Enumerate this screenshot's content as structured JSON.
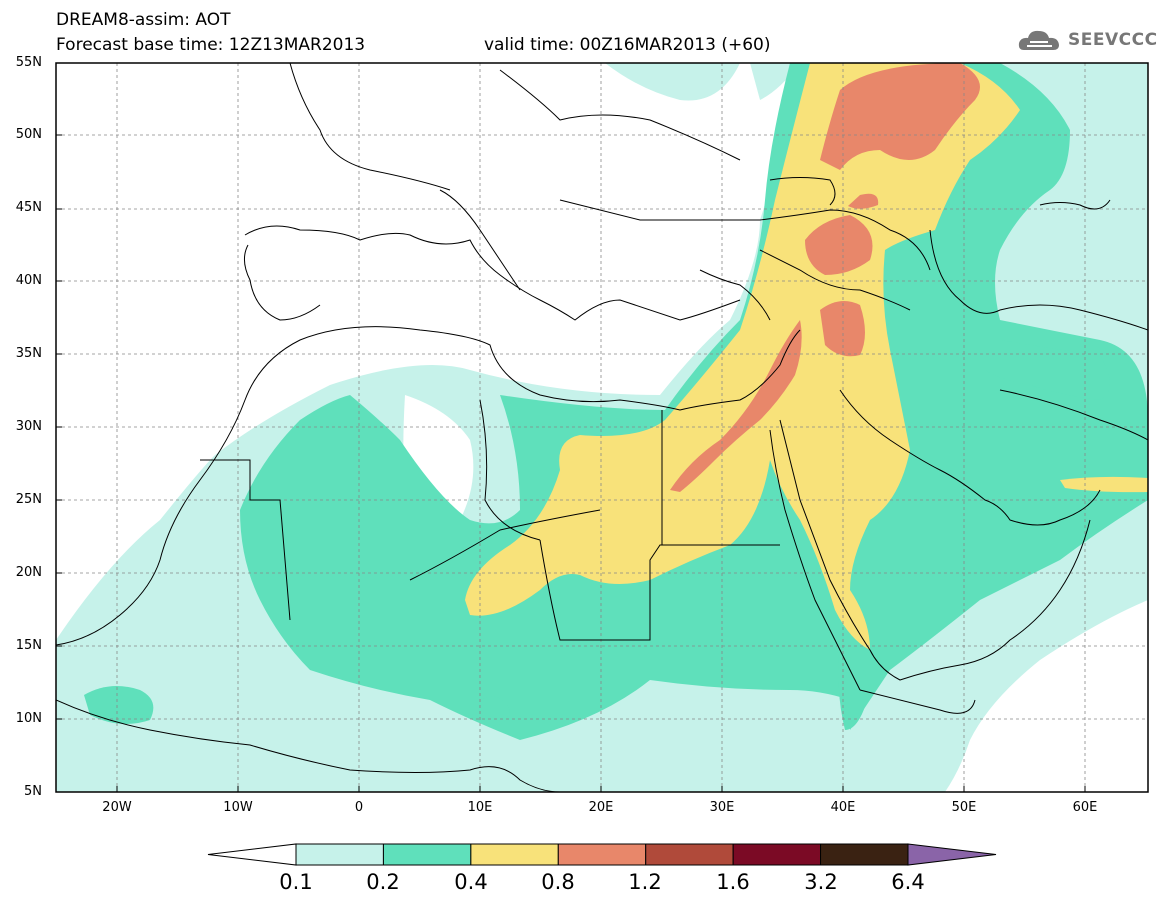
{
  "header": {
    "title": "DREAM8-assim: AOT",
    "base_time": "Forecast base time: 12Z13MAR2013",
    "valid_time": "valid time: 00Z16MAR2013 (+60)",
    "logo_text": "SEEVCCC"
  },
  "map": {
    "lat_labels": [
      "55N",
      "50N",
      "45N",
      "40N",
      "35N",
      "30N",
      "25N",
      "20N",
      "15N",
      "10N",
      "5N"
    ],
    "lon_labels": [
      "20W",
      "10W",
      "0",
      "10E",
      "20E",
      "30E",
      "40E",
      "50E",
      "60E"
    ],
    "lon_range": [
      -25,
      65
    ],
    "lat_range": [
      5,
      55
    ]
  },
  "legend": {
    "thresholds": [
      "0.1",
      "0.2",
      "0.4",
      "0.8",
      "1.2",
      "1.6",
      "3.2",
      "6.4"
    ],
    "colors": [
      "#ffffff",
      "#c6f2ea",
      "#5fe0bb",
      "#f8e27a",
      "#e8876a",
      "#b04a3a",
      "#7b0a25",
      "#3a2212",
      "#8a64a8"
    ]
  },
  "colors": {
    "frame": "#000000",
    "grid": "#888888",
    "coast": "#000000"
  }
}
